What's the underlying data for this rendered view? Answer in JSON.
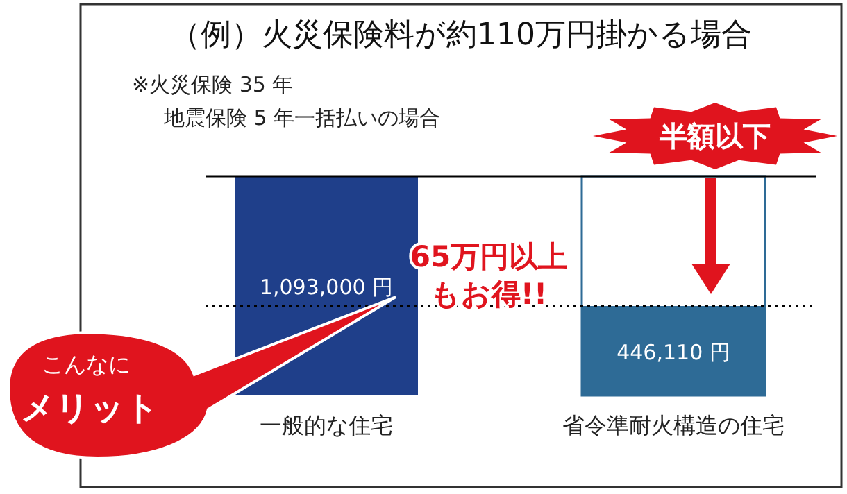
{
  "chart_data": {
    "type": "bar",
    "title": "（例）火災保険料が約110万円掛かる場合",
    "categories": [
      "一般的な住宅",
      "省令準耐火構造の住宅"
    ],
    "series": [
      {
        "values": [
          1093000,
          446110
        ],
        "colors": [
          "#1f3f8a",
          "#2e6b96"
        ],
        "value_labels": [
          "1,093,000 円",
          "446,110 円"
        ]
      },
      {
        "values": [
          null,
          1093000
        ],
        "color": "#2e6b96"
      }
    ],
    "ref_lines": [
      {
        "axis": "y",
        "value": 1093000,
        "color": "#000000",
        "line_style": "solid"
      },
      {
        "axis": "y",
        "value": 446110,
        "color": "#000000",
        "line_style": "dotted"
      }
    ],
    "annotations": [
      "※火災保険 35 年",
      "地震保険 5 年一括払いの場合",
      "半額以下",
      "65万円以上",
      "もお得!!",
      "こんなに",
      "メリット"
    ]
  }
}
